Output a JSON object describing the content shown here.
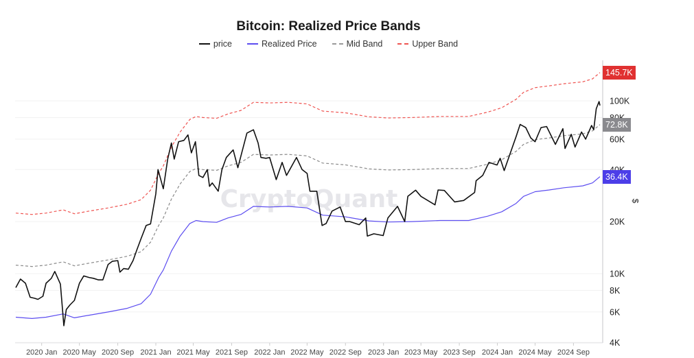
{
  "chart_data": {
    "type": "line",
    "title": "Bitcoin: Realized Price Bands",
    "ylabel": "$",
    "y_scale": "log",
    "ylim": [
      4000,
      160000
    ],
    "xlim": [
      "2019-10-10",
      "2024-11-25"
    ],
    "grid": true,
    "legend_position": "top",
    "watermark": "CryptoQuant",
    "y_ticks": [
      {
        "value": 100000,
        "label": "100K"
      },
      {
        "value": 80000,
        "label": "80K"
      },
      {
        "value": 60000,
        "label": "60K"
      },
      {
        "value": 40000,
        "label": "40K"
      },
      {
        "value": 20000,
        "label": "20K"
      },
      {
        "value": 10000,
        "label": "10K"
      },
      {
        "value": 8000,
        "label": "8K"
      },
      {
        "value": 6000,
        "label": "6K"
      },
      {
        "value": 4000,
        "label": "4K"
      }
    ],
    "x_ticks": [
      {
        "date": "2020-01-01",
        "label": "2020 Jan"
      },
      {
        "date": "2020-05-01",
        "label": "2020 May"
      },
      {
        "date": "2020-09-01",
        "label": "2020 Sep"
      },
      {
        "date": "2021-01-01",
        "label": "2021 Jan"
      },
      {
        "date": "2021-05-01",
        "label": "2021 May"
      },
      {
        "date": "2021-09-01",
        "label": "2021 Sep"
      },
      {
        "date": "2022-01-01",
        "label": "2022 Jan"
      },
      {
        "date": "2022-05-01",
        "label": "2022 May"
      },
      {
        "date": "2022-09-01",
        "label": "2022 Sep"
      },
      {
        "date": "2023-01-01",
        "label": "2023 Jan"
      },
      {
        "date": "2023-05-01",
        "label": "2023 May"
      },
      {
        "date": "2023-09-01",
        "label": "2023 Sep"
      },
      {
        "date": "2024-01-01",
        "label": "2024 Jan"
      },
      {
        "date": "2024-05-01",
        "label": "2024 May"
      },
      {
        "date": "2024-09-01",
        "label": "2024 Sep"
      }
    ],
    "last_value_badges": [
      {
        "series": "Upper Band",
        "label": "145.7K",
        "color": "#e03131"
      },
      {
        "series": "Mid Band",
        "label": "72.8K",
        "color": "#8a8a8e"
      },
      {
        "series": "Realized Price",
        "label": "36.4K",
        "color": "#4c3ee8"
      }
    ],
    "series": [
      {
        "name": "price",
        "color": "#111111",
        "style": "solid",
        "points": [
          [
            "2019-10-10",
            8300
          ],
          [
            "2019-10-25",
            9300
          ],
          [
            "2019-11-10",
            8800
          ],
          [
            "2019-11-25",
            7300
          ],
          [
            "2019-12-10",
            7200
          ],
          [
            "2019-12-20",
            7100
          ],
          [
            "2020-01-05",
            7400
          ],
          [
            "2020-01-15",
            8800
          ],
          [
            "2020-02-01",
            9400
          ],
          [
            "2020-02-12",
            10300
          ],
          [
            "2020-03-01",
            8700
          ],
          [
            "2020-03-12",
            5000
          ],
          [
            "2020-03-20",
            6200
          ],
          [
            "2020-04-01",
            6600
          ],
          [
            "2020-04-15",
            7000
          ],
          [
            "2020-05-01",
            8800
          ],
          [
            "2020-05-15",
            9700
          ],
          [
            "2020-06-01",
            9500
          ],
          [
            "2020-06-15",
            9400
          ],
          [
            "2020-07-01",
            9200
          ],
          [
            "2020-07-15",
            9200
          ],
          [
            "2020-08-01",
            11300
          ],
          [
            "2020-08-15",
            11800
          ],
          [
            "2020-09-01",
            11900
          ],
          [
            "2020-09-08",
            10200
          ],
          [
            "2020-09-20",
            10700
          ],
          [
            "2020-10-05",
            10600
          ],
          [
            "2020-10-20",
            11900
          ],
          [
            "2020-11-01",
            13700
          ],
          [
            "2020-11-15",
            16000
          ],
          [
            "2020-12-01",
            19000
          ],
          [
            "2020-12-15",
            19400
          ],
          [
            "2021-01-01",
            29000
          ],
          [
            "2021-01-08",
            40000
          ],
          [
            "2021-01-25",
            31000
          ],
          [
            "2021-02-08",
            46000
          ],
          [
            "2021-02-20",
            57000
          ],
          [
            "2021-03-01",
            46000
          ],
          [
            "2021-03-15",
            58000
          ],
          [
            "2021-04-01",
            59000
          ],
          [
            "2021-04-14",
            63500
          ],
          [
            "2021-04-25",
            50000
          ],
          [
            "2021-05-08",
            58000
          ],
          [
            "2021-05-19",
            37000
          ],
          [
            "2021-06-01",
            36000
          ],
          [
            "2021-06-15",
            40000
          ],
          [
            "2021-06-22",
            32000
          ],
          [
            "2021-07-01",
            33500
          ],
          [
            "2021-07-20",
            30000
          ],
          [
            "2021-08-01",
            40000
          ],
          [
            "2021-08-15",
            47000
          ],
          [
            "2021-09-06",
            52000
          ],
          [
            "2021-09-21",
            41000
          ],
          [
            "2021-10-01",
            48000
          ],
          [
            "2021-10-20",
            65000
          ],
          [
            "2021-11-10",
            68000
          ],
          [
            "2021-11-25",
            57000
          ],
          [
            "2021-12-04",
            47000
          ],
          [
            "2021-12-20",
            46500
          ],
          [
            "2022-01-01",
            47000
          ],
          [
            "2022-01-22",
            35000
          ],
          [
            "2022-02-10",
            44000
          ],
          [
            "2022-02-24",
            37000
          ],
          [
            "2022-03-28",
            47000
          ],
          [
            "2022-04-15",
            40000
          ],
          [
            "2022-05-01",
            38000
          ],
          [
            "2022-05-10",
            30000
          ],
          [
            "2022-06-01",
            30000
          ],
          [
            "2022-06-18",
            19000
          ],
          [
            "2022-07-01",
            19500
          ],
          [
            "2022-07-20",
            23000
          ],
          [
            "2022-08-15",
            24300
          ],
          [
            "2022-09-01",
            20000
          ],
          [
            "2022-09-15",
            20000
          ],
          [
            "2022-10-15",
            19200
          ],
          [
            "2022-11-05",
            21000
          ],
          [
            "2022-11-10",
            16500
          ],
          [
            "2022-12-01",
            17000
          ],
          [
            "2022-12-31",
            16600
          ],
          [
            "2023-01-15",
            21000
          ],
          [
            "2023-02-15",
            24500
          ],
          [
            "2023-03-10",
            20000
          ],
          [
            "2023-03-20",
            28000
          ],
          [
            "2023-04-14",
            30400
          ],
          [
            "2023-05-01",
            28000
          ],
          [
            "2023-06-15",
            25000
          ],
          [
            "2023-06-25",
            30500
          ],
          [
            "2023-07-15",
            30300
          ],
          [
            "2023-08-17",
            26000
          ],
          [
            "2023-09-15",
            26500
          ],
          [
            "2023-10-20",
            29500
          ],
          [
            "2023-10-25",
            34500
          ],
          [
            "2023-11-15",
            37000
          ],
          [
            "2023-12-05",
            44000
          ],
          [
            "2023-12-31",
            42500
          ],
          [
            "2024-01-10",
            46500
          ],
          [
            "2024-01-23",
            39500
          ],
          [
            "2024-02-15",
            52000
          ],
          [
            "2024-03-01",
            62000
          ],
          [
            "2024-03-14",
            73000
          ],
          [
            "2024-04-01",
            70000
          ],
          [
            "2024-04-17",
            61000
          ],
          [
            "2024-05-01",
            58000
          ],
          [
            "2024-05-20",
            70000
          ],
          [
            "2024-06-07",
            71000
          ],
          [
            "2024-06-25",
            61000
          ],
          [
            "2024-07-05",
            56000
          ],
          [
            "2024-07-29",
            69000
          ],
          [
            "2024-08-05",
            53000
          ],
          [
            "2024-08-25",
            64000
          ],
          [
            "2024-09-06",
            54000
          ],
          [
            "2024-09-27",
            66000
          ],
          [
            "2024-10-10",
            60000
          ],
          [
            "2024-10-29",
            72000
          ],
          [
            "2024-11-05",
            68000
          ],
          [
            "2024-11-13",
            90000
          ],
          [
            "2024-11-22",
            99000
          ],
          [
            "2024-11-25",
            94000
          ]
        ]
      },
      {
        "name": "Realized Price",
        "color": "#5b4cf0",
        "style": "solid",
        "points": [
          [
            "2019-10-10",
            5600
          ],
          [
            "2019-12-01",
            5500
          ],
          [
            "2020-01-15",
            5600
          ],
          [
            "2020-03-10",
            5850
          ],
          [
            "2020-04-15",
            5550
          ],
          [
            "2020-06-01",
            5750
          ],
          [
            "2020-08-01",
            6000
          ],
          [
            "2020-10-01",
            6300
          ],
          [
            "2020-11-15",
            6700
          ],
          [
            "2020-12-15",
            7600
          ],
          [
            "2021-01-10",
            9500
          ],
          [
            "2021-01-25",
            10500
          ],
          [
            "2021-02-20",
            13500
          ],
          [
            "2021-03-20",
            16500
          ],
          [
            "2021-04-20",
            19500
          ],
          [
            "2021-05-10",
            20300
          ],
          [
            "2021-06-01",
            20000
          ],
          [
            "2021-07-15",
            19800
          ],
          [
            "2021-08-20",
            21000
          ],
          [
            "2021-10-01",
            22000
          ],
          [
            "2021-11-10",
            24500
          ],
          [
            "2022-01-01",
            24300
          ],
          [
            "2022-03-01",
            24500
          ],
          [
            "2022-05-01",
            24000
          ],
          [
            "2022-06-20",
            21800
          ],
          [
            "2022-09-01",
            21300
          ],
          [
            "2022-11-15",
            20200
          ],
          [
            "2023-01-15",
            19900
          ],
          [
            "2023-04-01",
            20000
          ],
          [
            "2023-07-01",
            20300
          ],
          [
            "2023-10-01",
            20300
          ],
          [
            "2023-12-01",
            21500
          ],
          [
            "2024-01-15",
            22800
          ],
          [
            "2024-03-01",
            25500
          ],
          [
            "2024-03-25",
            28000
          ],
          [
            "2024-05-01",
            29800
          ],
          [
            "2024-06-15",
            30500
          ],
          [
            "2024-08-01",
            31400
          ],
          [
            "2024-10-01",
            32200
          ],
          [
            "2024-11-01",
            33500
          ],
          [
            "2024-11-25",
            36400
          ]
        ]
      },
      {
        "name": "Mid Band",
        "color": "#8a8a8a",
        "style": "dashed",
        "points": [
          [
            "2019-10-10",
            11200
          ],
          [
            "2019-12-01",
            11000
          ],
          [
            "2020-01-15",
            11200
          ],
          [
            "2020-03-10",
            11700
          ],
          [
            "2020-04-15",
            11100
          ],
          [
            "2020-06-01",
            11500
          ],
          [
            "2020-08-01",
            12000
          ],
          [
            "2020-10-01",
            12600
          ],
          [
            "2020-11-15",
            13400
          ],
          [
            "2020-12-15",
            15200
          ],
          [
            "2021-01-10",
            19000
          ],
          [
            "2021-01-25",
            21000
          ],
          [
            "2021-02-20",
            27000
          ],
          [
            "2021-03-20",
            33000
          ],
          [
            "2021-04-20",
            39000
          ],
          [
            "2021-05-10",
            40600
          ],
          [
            "2021-06-01",
            40000
          ],
          [
            "2021-07-15",
            39600
          ],
          [
            "2021-08-20",
            42000
          ],
          [
            "2021-10-01",
            44000
          ],
          [
            "2021-11-10",
            49000
          ],
          [
            "2022-01-01",
            48600
          ],
          [
            "2022-03-01",
            49000
          ],
          [
            "2022-05-01",
            48000
          ],
          [
            "2022-06-20",
            43600
          ],
          [
            "2022-09-01",
            42600
          ],
          [
            "2022-11-15",
            40400
          ],
          [
            "2023-01-15",
            39800
          ],
          [
            "2023-04-01",
            40000
          ],
          [
            "2023-07-01",
            40600
          ],
          [
            "2023-10-01",
            40600
          ],
          [
            "2023-12-01",
            43000
          ],
          [
            "2024-01-15",
            45600
          ],
          [
            "2024-03-01",
            51000
          ],
          [
            "2024-03-25",
            56000
          ],
          [
            "2024-05-01",
            59600
          ],
          [
            "2024-06-15",
            61000
          ],
          [
            "2024-08-01",
            62800
          ],
          [
            "2024-10-01",
            64400
          ],
          [
            "2024-11-01",
            67000
          ],
          [
            "2024-11-25",
            72800
          ]
        ]
      },
      {
        "name": "Upper Band",
        "color": "#ef5350",
        "style": "dashed",
        "points": [
          [
            "2019-10-10",
            22400
          ],
          [
            "2019-12-01",
            22000
          ],
          [
            "2020-01-15",
            22400
          ],
          [
            "2020-03-10",
            23400
          ],
          [
            "2020-04-15",
            22200
          ],
          [
            "2020-06-01",
            23000
          ],
          [
            "2020-08-01",
            24000
          ],
          [
            "2020-10-01",
            25200
          ],
          [
            "2020-11-15",
            26800
          ],
          [
            "2020-12-15",
            30400
          ],
          [
            "2021-01-10",
            38000
          ],
          [
            "2021-01-25",
            42000
          ],
          [
            "2021-02-20",
            54000
          ],
          [
            "2021-03-20",
            66000
          ],
          [
            "2021-04-20",
            78000
          ],
          [
            "2021-05-10",
            81200
          ],
          [
            "2021-06-01",
            80000
          ],
          [
            "2021-07-15",
            79200
          ],
          [
            "2021-08-20",
            84000
          ],
          [
            "2021-10-01",
            88000
          ],
          [
            "2021-11-10",
            98000
          ],
          [
            "2022-01-01",
            97200
          ],
          [
            "2022-03-01",
            98000
          ],
          [
            "2022-05-01",
            96000
          ],
          [
            "2022-06-20",
            87200
          ],
          [
            "2022-09-01",
            85200
          ],
          [
            "2022-11-15",
            80800
          ],
          [
            "2023-01-15",
            79600
          ],
          [
            "2023-04-01",
            80000
          ],
          [
            "2023-07-01",
            81200
          ],
          [
            "2023-10-01",
            81200
          ],
          [
            "2023-12-01",
            86000
          ],
          [
            "2024-01-15",
            91200
          ],
          [
            "2024-03-01",
            102000
          ],
          [
            "2024-03-25",
            112000
          ],
          [
            "2024-05-01",
            119200
          ],
          [
            "2024-06-15",
            122000
          ],
          [
            "2024-08-01",
            125600
          ],
          [
            "2024-10-01",
            128800
          ],
          [
            "2024-11-01",
            134000
          ],
          [
            "2024-11-25",
            145700
          ]
        ]
      }
    ]
  }
}
